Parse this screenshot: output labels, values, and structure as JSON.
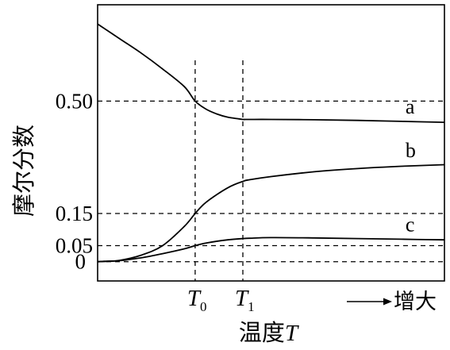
{
  "chart_data": {
    "type": "line",
    "title": "",
    "ylabel": "摩尔分数",
    "xlabel_text": "温度",
    "xlabel_var": "T",
    "x_direction_label": "增大",
    "yticks": [
      {
        "value": 0,
        "label": "0"
      },
      {
        "value": 0.05,
        "label": "0.05"
      },
      {
        "value": 0.15,
        "label": "0.15"
      },
      {
        "value": 0.5,
        "label": "0.50"
      }
    ],
    "xticks": [
      {
        "value": 4.5,
        "main": "T",
        "sub": "0"
      },
      {
        "value": 6.7,
        "main": "T",
        "sub": "1"
      }
    ],
    "xlim": [
      0,
      16
    ],
    "ylim": [
      -0.06,
      0.8
    ],
    "grid": false,
    "series": [
      {
        "name": "a",
        "x": [
          0,
          1,
          2,
          3,
          4,
          4.5,
          5,
          5.5,
          6,
          6.5,
          6.7,
          7,
          8,
          10,
          12,
          14,
          16
        ],
        "y": [
          0.74,
          0.695,
          0.65,
          0.6,
          0.545,
          0.5,
          0.475,
          0.46,
          0.45,
          0.445,
          0.443,
          0.443,
          0.443,
          0.442,
          0.44,
          0.437,
          0.434
        ]
      },
      {
        "name": "b",
        "x": [
          0,
          0.3,
          1,
          2,
          3,
          4,
          4.5,
          5,
          6,
          6.7,
          7,
          8,
          10,
          12,
          14,
          16
        ],
        "y": [
          0,
          0.001,
          0.004,
          0.02,
          0.05,
          0.11,
          0.15,
          0.185,
          0.23,
          0.25,
          0.255,
          0.265,
          0.28,
          0.29,
          0.297,
          0.302
        ]
      },
      {
        "name": "c",
        "x": [
          0,
          0.3,
          1,
          2,
          3,
          4,
          4.5,
          5,
          6,
          6.7,
          7,
          8,
          10,
          12,
          14,
          16
        ],
        "y": [
          0,
          0.001,
          0.003,
          0.012,
          0.025,
          0.04,
          0.05,
          0.058,
          0.068,
          0.072,
          0.073,
          0.075,
          0.074,
          0.072,
          0.07,
          0.068
        ]
      }
    ],
    "series_label_positions": [
      {
        "name": "a",
        "x": 14.2,
        "y": 0.462
      },
      {
        "name": "b",
        "x": 14.2,
        "y": 0.325
      },
      {
        "name": "c",
        "x": 14.2,
        "y": 0.095
      }
    ]
  }
}
